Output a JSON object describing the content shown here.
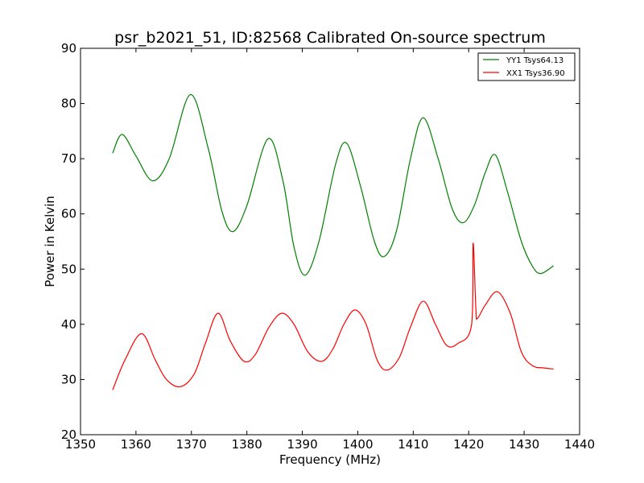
{
  "chart_data": {
    "type": "line",
    "title": "psr_b2021_51, ID:82568 Calibrated On-source spectrum",
    "xlabel": "Frequency (MHz)",
    "ylabel": "Power in Kelvin",
    "xlim": [
      1350,
      1440
    ],
    "ylim": [
      20,
      90
    ],
    "xticks": [
      1350,
      1360,
      1370,
      1380,
      1390,
      1400,
      1410,
      1420,
      1430,
      1440
    ],
    "yticks": [
      20,
      30,
      40,
      50,
      60,
      70,
      80,
      90
    ],
    "grid": false,
    "legend_position": "top-right",
    "series": [
      {
        "name": "YY1 Tsys64.13",
        "color": "#008000",
        "points": [
          [
            1355.8,
            71.0
          ],
          [
            1357.5,
            74.4
          ],
          [
            1360.0,
            70.5
          ],
          [
            1363.0,
            66.0
          ],
          [
            1366.0,
            70.0
          ],
          [
            1369.8,
            81.6
          ],
          [
            1373.0,
            72.0
          ],
          [
            1375.5,
            60.5
          ],
          [
            1377.5,
            56.8
          ],
          [
            1380.0,
            61.5
          ],
          [
            1383.8,
            73.6
          ],
          [
            1386.5,
            66.0
          ],
          [
            1388.5,
            54.0
          ],
          [
            1390.5,
            48.9
          ],
          [
            1393.0,
            55.0
          ],
          [
            1396.0,
            69.0
          ],
          [
            1398.0,
            72.8
          ],
          [
            1400.5,
            65.0
          ],
          [
            1403.0,
            55.0
          ],
          [
            1404.8,
            52.3
          ],
          [
            1407.0,
            57.0
          ],
          [
            1409.5,
            70.0
          ],
          [
            1411.8,
            77.4
          ],
          [
            1414.5,
            70.0
          ],
          [
            1417.0,
            61.0
          ],
          [
            1419.0,
            58.4
          ],
          [
            1421.0,
            61.5
          ],
          [
            1423.0,
            67.5
          ],
          [
            1424.8,
            70.7
          ],
          [
            1427.0,
            64.0
          ],
          [
            1429.5,
            55.0
          ],
          [
            1431.5,
            50.5
          ],
          [
            1433.0,
            49.2
          ],
          [
            1435.3,
            50.6
          ]
        ]
      },
      {
        "name": "XX1 Tsys36.90",
        "color": "#ff0000",
        "points": [
          [
            1355.8,
            28.1
          ],
          [
            1358.0,
            33.5
          ],
          [
            1361.0,
            38.3
          ],
          [
            1363.5,
            33.5
          ],
          [
            1365.5,
            30.0
          ],
          [
            1368.0,
            28.7
          ],
          [
            1370.5,
            31.0
          ],
          [
            1372.5,
            36.5
          ],
          [
            1374.8,
            42.0
          ],
          [
            1377.0,
            37.0
          ],
          [
            1379.5,
            33.3
          ],
          [
            1381.5,
            34.5
          ],
          [
            1384.0,
            39.5
          ],
          [
            1386.3,
            42.0
          ],
          [
            1388.5,
            40.0
          ],
          [
            1391.0,
            35.0
          ],
          [
            1393.5,
            33.3
          ],
          [
            1395.5,
            35.5
          ],
          [
            1397.5,
            40.0
          ],
          [
            1399.5,
            42.6
          ],
          [
            1401.5,
            40.0
          ],
          [
            1403.5,
            33.5
          ],
          [
            1405.3,
            31.7
          ],
          [
            1407.5,
            34.0
          ],
          [
            1409.5,
            39.5
          ],
          [
            1411.8,
            44.2
          ],
          [
            1414.0,
            40.0
          ],
          [
            1416.0,
            36.2
          ],
          [
            1418.0,
            36.5
          ],
          [
            1420.5,
            39.8
          ],
          [
            1420.8,
            54.7
          ],
          [
            1421.3,
            42.6
          ],
          [
            1421.6,
            41.1
          ],
          [
            1423.0,
            43.5
          ],
          [
            1425.2,
            45.9
          ],
          [
            1427.5,
            42.0
          ],
          [
            1429.5,
            35.0
          ],
          [
            1431.5,
            32.5
          ],
          [
            1433.5,
            32.1
          ],
          [
            1435.3,
            31.9
          ]
        ]
      }
    ]
  }
}
